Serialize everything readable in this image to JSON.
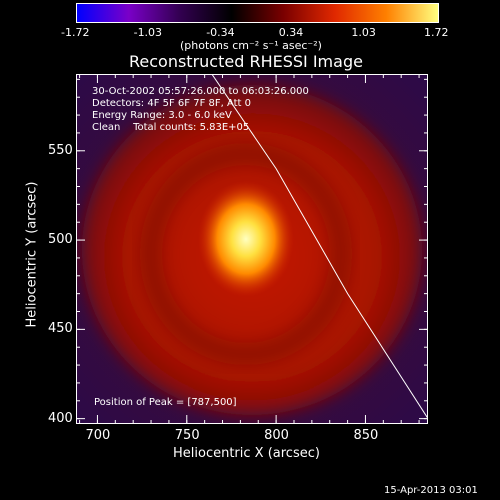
{
  "colorbar": {
    "ticks": [
      "-1.72",
      "-1.03",
      "-0.34",
      "0.34",
      "1.03",
      "1.72"
    ],
    "units": "(photons cm⁻² s⁻¹ asec⁻²)",
    "colors": [
      "#0000ff",
      "#7a00c8",
      "#320050",
      "#000000",
      "#7a0000",
      "#e02800",
      "#ff8000",
      "#ffff80"
    ]
  },
  "chart_data": {
    "type": "heatmap",
    "title": "Reconstructed RHESSI Image",
    "xlabel": "Heliocentric X (arcsec)",
    "ylabel": "Heliocentric Y (arcsec)",
    "xlim": [
      688,
      885
    ],
    "ylim": [
      397,
      593
    ],
    "x_ticks": [
      700,
      750,
      800,
      850
    ],
    "y_ticks": [
      400,
      450,
      500,
      550
    ],
    "peak": [
      787,
      500
    ],
    "annotations": [
      "30-Oct-2002 05:57:26.000 to 06:03:26.000",
      "Detectors: 4F 5F 6F 7F 8F, Att 0",
      "Energy Range: 3.0 - 6.0 keV",
      "Clean    Total counts: 5.83E+05"
    ],
    "peak_label": "Position of Peak = [787,500]",
    "limb_curve": [
      [
        764,
        593
      ],
      [
        800,
        540
      ],
      [
        840,
        470
      ],
      [
        885,
        400
      ]
    ]
  },
  "footer": {
    "timestamp": "15-Apr-2013 03:01"
  }
}
